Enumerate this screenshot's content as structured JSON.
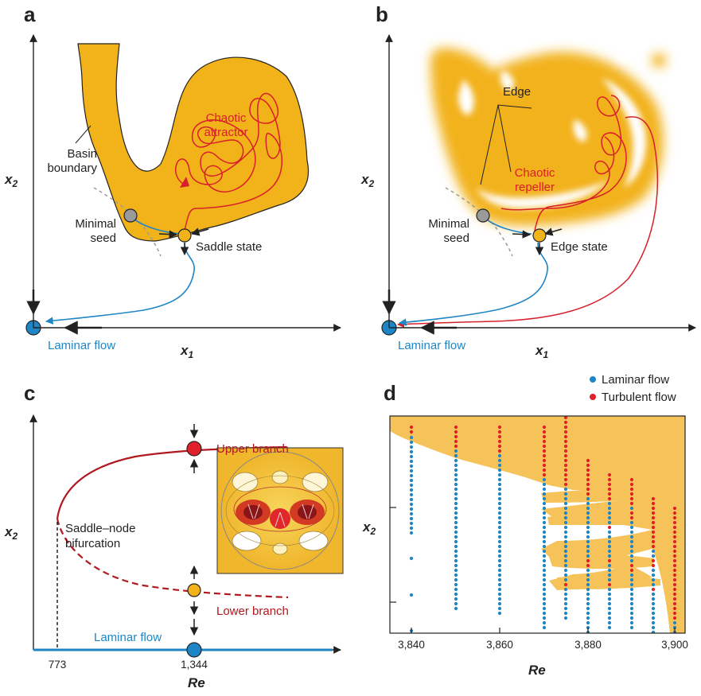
{
  "colors": {
    "basin": "#f2b21a",
    "basin_d": "#f5c35a",
    "red": "#d8202a",
    "dark_red": "#b0191f",
    "blue": "#1e86c6",
    "grey": "#9a9a9a",
    "axis": "#222222"
  },
  "panel_a": {
    "letter": "a",
    "x_label": "x",
    "x_sub": "1",
    "y_label": "x",
    "y_sub": "2",
    "attractor_l1": "Chaotic",
    "attractor_l2": "attractor",
    "basin_l1": "Basin",
    "basin_l2": "boundary",
    "seed_l1": "Minimal",
    "seed_l2": "seed",
    "saddle": "Saddle state",
    "laminar": "Laminar flow"
  },
  "panel_b": {
    "letter": "b",
    "x_label": "x",
    "x_sub": "1",
    "y_label": "x",
    "y_sub": "2",
    "edge": "Edge",
    "repeller_l1": "Chaotic",
    "repeller_l2": "repeller",
    "seed_l1": "Minimal",
    "seed_l2": "seed",
    "edge_state": "Edge state",
    "laminar": "Laminar flow"
  },
  "panel_c": {
    "letter": "c",
    "x_label": "Re",
    "y_label": "x",
    "y_sub": "2",
    "upper": "Upper branch",
    "lower": "Lower branch",
    "sn_l1": "Saddle–node",
    "sn_l2": "bifurcation",
    "laminar": "Laminar flow",
    "xticks": [
      "773",
      "1,344"
    ]
  },
  "panel_d": {
    "letter": "d",
    "x_label": "Re",
    "y_label": "x",
    "y_sub": "2",
    "legend_laminar": "Laminar flow",
    "legend_turbulent": "Turbulent flow",
    "xticks": [
      "3,840",
      "3,860",
      "3,880",
      "3,900"
    ]
  }
}
